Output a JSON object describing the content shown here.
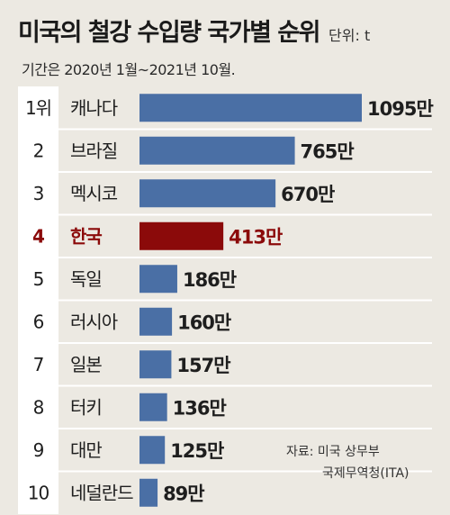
{
  "title": "미국의 철강 수입량 국가별 순위",
  "unit": "단위: t",
  "subtitle": "기간은 2020년 1월~2021년 10월.",
  "source": {
    "line1": "자료: 미국 상무부",
    "line2": "국제무역청(ITA)"
  },
  "colors": {
    "bar": "#4a6fa5",
    "highlight": "#8b0a0a",
    "rank_box": "#ffffff",
    "background": "#ece9e2",
    "separator": "#ffffff"
  },
  "chart_data": {
    "type": "bar",
    "orientation": "horizontal",
    "ranks": [
      "1위",
      "2",
      "3",
      "4",
      "5",
      "6",
      "7",
      "8",
      "9",
      "10"
    ],
    "categories": [
      "캐나다",
      "브라질",
      "멕시코",
      "한국",
      "독일",
      "러시아",
      "일본",
      "터키",
      "대만",
      "네덜란드"
    ],
    "values": [
      1095,
      765,
      670,
      413,
      186,
      160,
      157,
      136,
      125,
      89
    ],
    "value_labels": [
      "1095만",
      "765만",
      "670만",
      "413만",
      "186만",
      "160만",
      "157만",
      "136만",
      "125만",
      "89만"
    ],
    "value_unit": "만",
    "highlight_index": 3
  }
}
